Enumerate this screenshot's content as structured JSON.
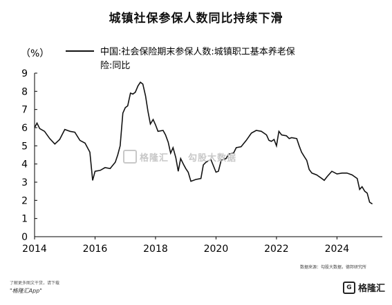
{
  "title": "城镇社保参保人数同比持续下滑",
  "unit_label": "（%）",
  "legend_line1": "中国:社会保险期末参保人数:城镇职工基本养老保",
  "legend_line2": "险:同比",
  "source": "数据来源：勾股大数据，德邦研究所",
  "watermark_brand": "格隆汇",
  "watermark_data": "勾股大数据",
  "footer_line1": "了解更多图文干货，请下载",
  "footer_app": "\"格隆汇App\"",
  "logo_text": "格隆汇",
  "logo_sub": "gelonghui.com",
  "colors": {
    "line": "#111111",
    "axis": "#000000"
  },
  "chart_data": {
    "type": "line",
    "title": "城镇社保参保人数同比持续下滑",
    "ylabel": "（%）",
    "xlim": [
      2014,
      2025.5
    ],
    "ylim": [
      0,
      9
    ],
    "yticks": [
      0,
      1,
      2,
      3,
      4,
      5,
      6,
      7,
      8,
      9
    ],
    "xticks": [
      2014,
      2016,
      2018,
      2020,
      2022,
      2024
    ],
    "grid": false,
    "legend_position": "top",
    "series": [
      {
        "name": "中国:社会保险期末参保人数:城镇职工基本养老保险:同比",
        "points": [
          [
            2014.0,
            6.0
          ],
          [
            2014.08,
            6.25
          ],
          [
            2014.17,
            5.95
          ],
          [
            2014.33,
            5.8
          ],
          [
            2014.5,
            5.4
          ],
          [
            2014.67,
            5.1
          ],
          [
            2014.83,
            5.35
          ],
          [
            2015.0,
            5.9
          ],
          [
            2015.17,
            5.8
          ],
          [
            2015.33,
            5.75
          ],
          [
            2015.5,
            5.3
          ],
          [
            2015.67,
            5.15
          ],
          [
            2015.83,
            4.65
          ],
          [
            2015.92,
            3.1
          ],
          [
            2016.0,
            3.6
          ],
          [
            2016.17,
            3.65
          ],
          [
            2016.33,
            3.8
          ],
          [
            2016.5,
            3.75
          ],
          [
            2016.67,
            4.1
          ],
          [
            2016.75,
            4.5
          ],
          [
            2016.83,
            5.0
          ],
          [
            2016.92,
            6.8
          ],
          [
            2017.0,
            7.1
          ],
          [
            2017.08,
            7.2
          ],
          [
            2017.17,
            7.9
          ],
          [
            2017.25,
            7.85
          ],
          [
            2017.33,
            7.95
          ],
          [
            2017.42,
            8.3
          ],
          [
            2017.5,
            8.5
          ],
          [
            2017.58,
            8.4
          ],
          [
            2017.67,
            7.75
          ],
          [
            2017.75,
            6.9
          ],
          [
            2017.83,
            6.2
          ],
          [
            2017.92,
            6.45
          ],
          [
            2018.0,
            6.15
          ],
          [
            2018.08,
            5.8
          ],
          [
            2018.25,
            5.85
          ],
          [
            2018.33,
            5.6
          ],
          [
            2018.42,
            5.2
          ],
          [
            2018.5,
            4.6
          ],
          [
            2018.58,
            4.9
          ],
          [
            2018.67,
            4.35
          ],
          [
            2018.75,
            3.6
          ],
          [
            2018.83,
            4.3
          ],
          [
            2018.92,
            4.0
          ],
          [
            2019.0,
            3.75
          ],
          [
            2019.08,
            3.55
          ],
          [
            2019.17,
            3.05
          ],
          [
            2019.33,
            3.15
          ],
          [
            2019.5,
            3.2
          ],
          [
            2019.58,
            3.95
          ],
          [
            2019.67,
            4.1
          ],
          [
            2019.83,
            4.25
          ],
          [
            2020.0,
            3.55
          ],
          [
            2020.08,
            3.6
          ],
          [
            2020.17,
            4.2
          ],
          [
            2020.33,
            4.3
          ],
          [
            2020.42,
            4.55
          ],
          [
            2020.58,
            4.6
          ],
          [
            2020.67,
            4.9
          ],
          [
            2020.83,
            4.95
          ],
          [
            2021.0,
            5.3
          ],
          [
            2021.17,
            5.7
          ],
          [
            2021.33,
            5.85
          ],
          [
            2021.5,
            5.8
          ],
          [
            2021.67,
            5.6
          ],
          [
            2021.75,
            5.3
          ],
          [
            2021.83,
            5.25
          ],
          [
            2021.92,
            5.35
          ],
          [
            2022.0,
            5.0
          ],
          [
            2022.08,
            5.8
          ],
          [
            2022.17,
            5.6
          ],
          [
            2022.33,
            5.55
          ],
          [
            2022.42,
            5.4
          ],
          [
            2022.5,
            5.45
          ],
          [
            2022.67,
            5.4
          ],
          [
            2022.75,
            5.0
          ],
          [
            2022.83,
            4.65
          ],
          [
            2022.92,
            4.4
          ],
          [
            2023.0,
            4.2
          ],
          [
            2023.08,
            3.7
          ],
          [
            2023.17,
            3.5
          ],
          [
            2023.33,
            3.4
          ],
          [
            2023.5,
            3.2
          ],
          [
            2023.58,
            3.1
          ],
          [
            2023.67,
            3.3
          ],
          [
            2023.83,
            3.6
          ],
          [
            2024.0,
            3.45
          ],
          [
            2024.17,
            3.5
          ],
          [
            2024.33,
            3.5
          ],
          [
            2024.5,
            3.4
          ],
          [
            2024.67,
            3.2
          ],
          [
            2024.75,
            2.6
          ],
          [
            2024.83,
            2.75
          ],
          [
            2024.92,
            2.5
          ],
          [
            2025.0,
            2.4
          ],
          [
            2025.08,
            1.9
          ],
          [
            2025.17,
            1.8
          ]
        ]
      }
    ]
  }
}
